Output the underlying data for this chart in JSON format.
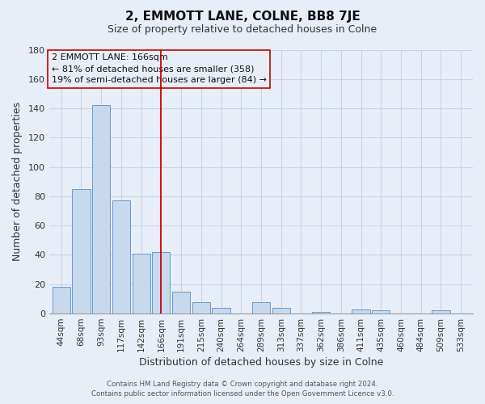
{
  "title": "2, EMMOTT LANE, COLNE, BB8 7JE",
  "subtitle": "Size of property relative to detached houses in Colne",
  "xlabel": "Distribution of detached houses by size in Colne",
  "ylabel": "Number of detached properties",
  "bar_labels": [
    "44sqm",
    "68sqm",
    "93sqm",
    "117sqm",
    "142sqm",
    "166sqm",
    "191sqm",
    "215sqm",
    "240sqm",
    "264sqm",
    "289sqm",
    "313sqm",
    "337sqm",
    "362sqm",
    "386sqm",
    "411sqm",
    "435sqm",
    "460sqm",
    "484sqm",
    "509sqm",
    "533sqm"
  ],
  "bar_heights": [
    18,
    85,
    142,
    77,
    41,
    42,
    15,
    8,
    4,
    0,
    8,
    4,
    0,
    1,
    0,
    3,
    2,
    0,
    0,
    2,
    0
  ],
  "bar_color": "#c8d8ed",
  "bar_edgecolor": "#6699cc",
  "vline_x_index": 5,
  "vline_color": "#cc0000",
  "annotation_lines": [
    "2 EMMOTT LANE: 166sqm",
    "← 81% of detached houses are smaller (358)",
    "19% of semi-detached houses are larger (84) →"
  ],
  "annotation_box_edgecolor": "#cc0000",
  "ylim": [
    0,
    180
  ],
  "yticks": [
    0,
    20,
    40,
    60,
    80,
    100,
    120,
    140,
    160,
    180
  ],
  "grid_color": "#c8d4e4",
  "background_color": "#e8eef8",
  "plot_bg_color": "#e8eef8",
  "footer_line1": "Contains HM Land Registry data © Crown copyright and database right 2024.",
  "footer_line2": "Contains public sector information licensed under the Open Government Licence v3.0."
}
